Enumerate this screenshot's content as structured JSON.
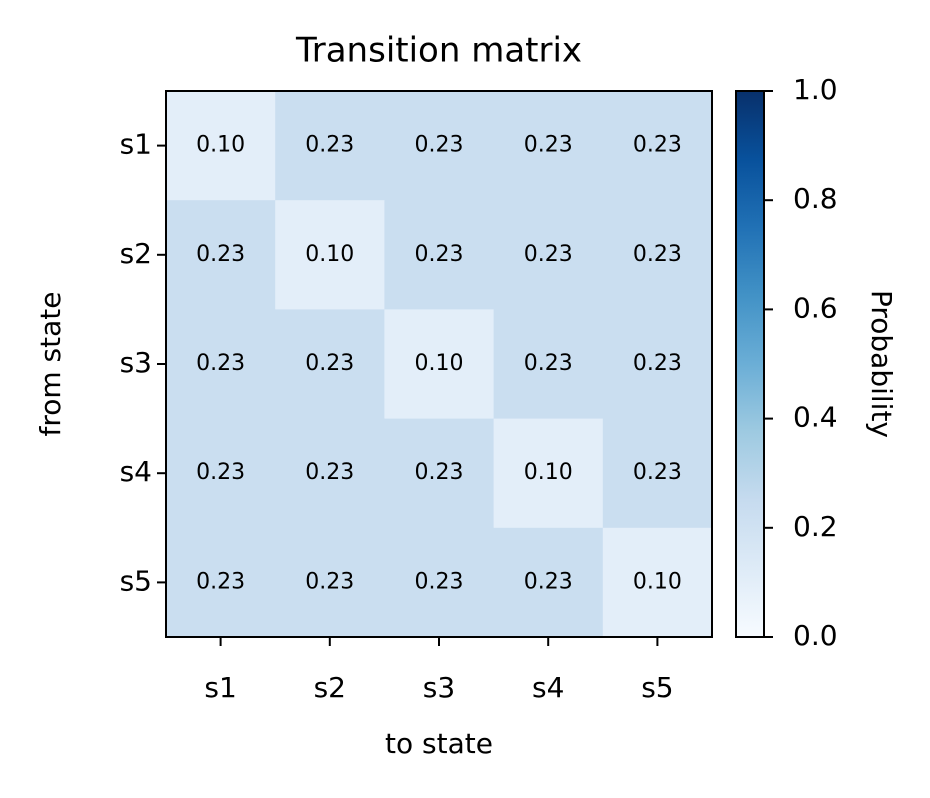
{
  "chart_data": {
    "type": "heatmap",
    "title": "Transition matrix",
    "x_label": "to state",
    "y_label": "from state",
    "x_categories": [
      "s1",
      "s2",
      "s3",
      "s4",
      "s5"
    ],
    "y_categories": [
      "s1",
      "s2",
      "s3",
      "s4",
      "s5"
    ],
    "values": [
      [
        0.1,
        0.23,
        0.23,
        0.23,
        0.23
      ],
      [
        0.23,
        0.1,
        0.23,
        0.23,
        0.23
      ],
      [
        0.23,
        0.23,
        0.1,
        0.23,
        0.23
      ],
      [
        0.23,
        0.23,
        0.23,
        0.1,
        0.23
      ],
      [
        0.23,
        0.23,
        0.23,
        0.23,
        0.1
      ]
    ],
    "value_labels": [
      [
        "0.10",
        "0.23",
        "0.23",
        "0.23",
        "0.23"
      ],
      [
        "0.23",
        "0.10",
        "0.23",
        "0.23",
        "0.23"
      ],
      [
        "0.23",
        "0.23",
        "0.10",
        "0.23",
        "0.23"
      ],
      [
        "0.23",
        "0.23",
        "0.23",
        "0.10",
        "0.23"
      ],
      [
        "0.23",
        "0.23",
        "0.23",
        "0.23",
        "0.10"
      ]
    ],
    "colormap": "Blues",
    "colorbar_label": "Probability",
    "clim": [
      0,
      1
    ],
    "cticks": [
      {
        "value": 0,
        "label": "0.0"
      },
      0.2,
      0.4,
      0.6,
      0.8,
      {
        "value": 1,
        "label": "1.0"
      }
    ]
  }
}
